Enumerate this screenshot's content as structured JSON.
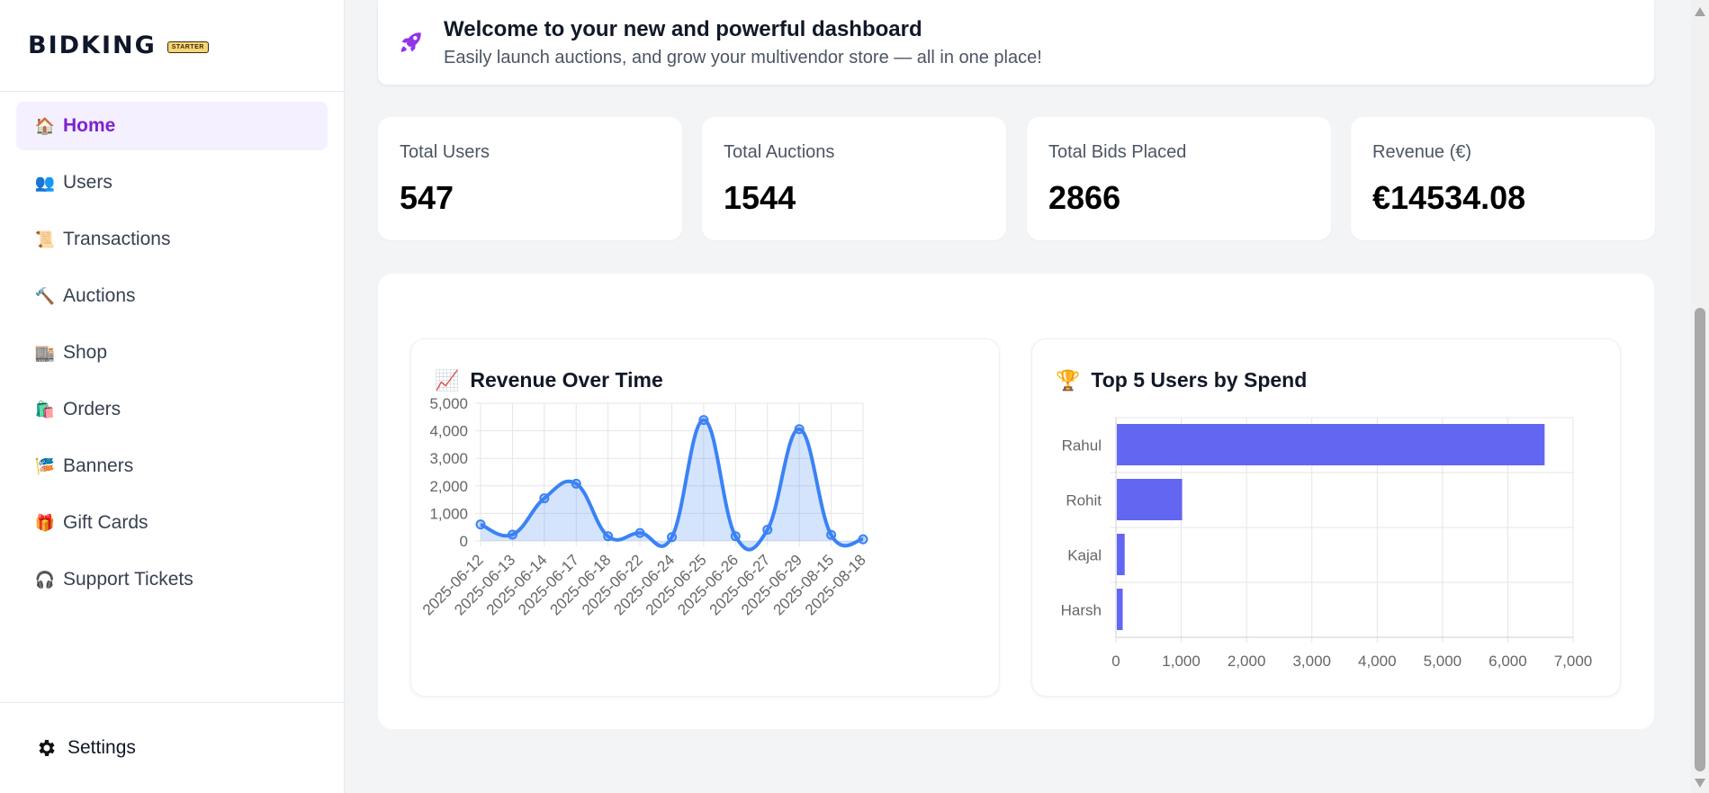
{
  "brand": {
    "name": "BIDKING",
    "plan_badge": "STARTER"
  },
  "sidebar": {
    "items": [
      {
        "icon": "🏠",
        "label": "Home",
        "active": true
      },
      {
        "icon": "👥",
        "label": "Users"
      },
      {
        "icon": "📜",
        "label": "Transactions"
      },
      {
        "icon": "🔨",
        "label": "Auctions"
      },
      {
        "icon": "🏬",
        "label": "Shop"
      },
      {
        "icon": "🛍️",
        "label": "Orders"
      },
      {
        "icon": "🎏",
        "label": "Banners"
      },
      {
        "icon": "🎁",
        "label": "Gift Cards"
      },
      {
        "icon": "🎧",
        "label": "Support Tickets"
      }
    ],
    "settings_label": "Settings"
  },
  "welcome": {
    "title": "Welcome to your new and powerful dashboard",
    "subtitle": "Easily launch auctions, and grow your multivendor store — all in one place!"
  },
  "stats": [
    {
      "label": "Total Users",
      "value": "547"
    },
    {
      "label": "Total Auctions",
      "value": "1544"
    },
    {
      "label": "Total Bids Placed",
      "value": "2866"
    },
    {
      "label": "Revenue (€)",
      "value": "€14534.08"
    }
  ],
  "charts": {
    "revenue": {
      "emoji": "📈",
      "title": "Revenue Over Time"
    },
    "top_users": {
      "emoji": "🏆",
      "title": "Top 5 Users by Spend"
    }
  },
  "chart_data": [
    {
      "type": "line",
      "title": "Revenue Over Time",
      "x": [
        "2025-06-12",
        "2025-06-13",
        "2025-06-14",
        "2025-06-17",
        "2025-06-18",
        "2025-06-22",
        "2025-06-24",
        "2025-06-25",
        "2025-06-26",
        "2025-06-27",
        "2025-06-29",
        "2025-08-15",
        "2025-08-18"
      ],
      "values": [
        600,
        230,
        1550,
        2080,
        170,
        290,
        140,
        4390,
        170,
        410,
        4060,
        220,
        60
      ],
      "ylim": [
        0,
        5000
      ],
      "yticks": [
        0,
        1000,
        2000,
        3000,
        4000,
        5000
      ],
      "fill": true,
      "grid": true,
      "color": "#3b82f6"
    },
    {
      "type": "bar",
      "orientation": "horizontal",
      "title": "Top 5 Users by Spend",
      "categories": [
        "Rahul",
        "Rohit",
        "Kajal",
        "Harsh"
      ],
      "values": [
        6550,
        1000,
        120,
        90
      ],
      "xlim": [
        0,
        7000
      ],
      "xticks": [
        0,
        1000,
        2000,
        3000,
        4000,
        5000,
        6000,
        7000
      ],
      "grid": true,
      "color": "#6366f1"
    }
  ]
}
